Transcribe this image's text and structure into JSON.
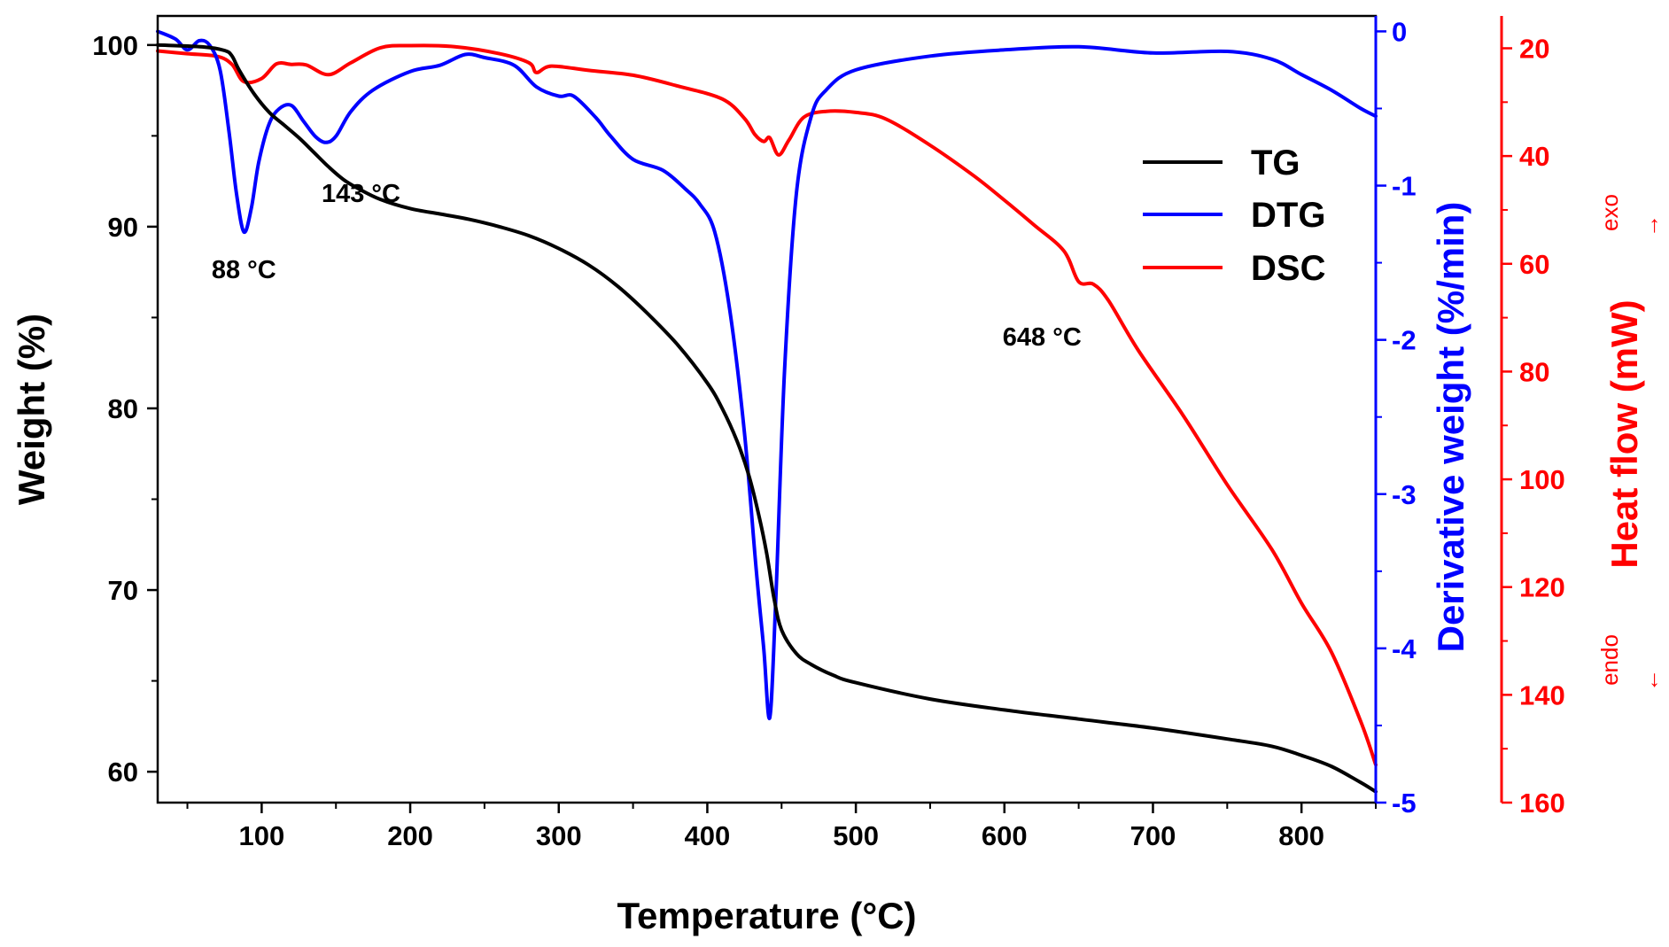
{
  "chart_data": {
    "type": "line",
    "xlabel": "Temperature (°C)",
    "x_ticks": [
      "100",
      "200",
      "300",
      "400",
      "500",
      "600",
      "700",
      "800"
    ],
    "xlim": [
      30,
      850
    ],
    "axes": {
      "left": {
        "label": "Weight (%)",
        "color": "#000000",
        "lim": [
          58.3,
          101.6
        ],
        "ticks": [
          "60",
          "70",
          "80",
          "90",
          "100"
        ]
      },
      "right1": {
        "label": "Derivative weight (%/min)",
        "color": "#0000ff",
        "lim": [
          -5,
          0.1
        ],
        "ticks": [
          "0",
          "-1",
          "-2",
          "-3",
          "-4",
          "-5"
        ]
      },
      "right2": {
        "label": "Heat flow (mW)",
        "color": "#ff0000",
        "lim": [
          160,
          14
        ],
        "ticks": [
          "20",
          "40",
          "60",
          "80",
          "100",
          "120",
          "140",
          "160"
        ],
        "exo_label": "exo",
        "endo_label": "endo",
        "up_arrow": "→",
        "down_arrow": "←"
      }
    },
    "legend_position": "top-right",
    "series": [
      {
        "name": "TG",
        "axis": "left",
        "color": "#000000",
        "points": [
          [
            30,
            100
          ],
          [
            60,
            99.9
          ],
          [
            75,
            99.7
          ],
          [
            80,
            99.4
          ],
          [
            85,
            98.6
          ],
          [
            95,
            97.3
          ],
          [
            105,
            96.3
          ],
          [
            115,
            95.6
          ],
          [
            125,
            94.9
          ],
          [
            135,
            94.1
          ],
          [
            145,
            93.3
          ],
          [
            155,
            92.6
          ],
          [
            165,
            92.1
          ],
          [
            180,
            91.5
          ],
          [
            200,
            91.0
          ],
          [
            220,
            90.7
          ],
          [
            240,
            90.4
          ],
          [
            260,
            90.0
          ],
          [
            280,
            89.5
          ],
          [
            300,
            88.8
          ],
          [
            320,
            87.9
          ],
          [
            340,
            86.7
          ],
          [
            360,
            85.2
          ],
          [
            380,
            83.5
          ],
          [
            400,
            81.4
          ],
          [
            410,
            80.0
          ],
          [
            420,
            78.2
          ],
          [
            428,
            76.3
          ],
          [
            435,
            74.0
          ],
          [
            440,
            72.0
          ],
          [
            445,
            69.5
          ],
          [
            450,
            67.8
          ],
          [
            460,
            66.5
          ],
          [
            470,
            65.9
          ],
          [
            485,
            65.3
          ],
          [
            500,
            64.9
          ],
          [
            550,
            64.0
          ],
          [
            600,
            63.4
          ],
          [
            650,
            62.9
          ],
          [
            700,
            62.4
          ],
          [
            750,
            61.8
          ],
          [
            780,
            61.4
          ],
          [
            800,
            60.9
          ],
          [
            820,
            60.3
          ],
          [
            840,
            59.4
          ],
          [
            850,
            58.9
          ]
        ]
      },
      {
        "name": "DTG",
        "axis": "right1",
        "color": "#0000ff",
        "points": [
          [
            30,
            0.0
          ],
          [
            42,
            -0.05
          ],
          [
            50,
            -0.12
          ],
          [
            58,
            -0.06
          ],
          [
            65,
            -0.09
          ],
          [
            72,
            -0.25
          ],
          [
            78,
            -0.65
          ],
          [
            83,
            -1.05
          ],
          [
            88,
            -1.3
          ],
          [
            93,
            -1.15
          ],
          [
            98,
            -0.85
          ],
          [
            105,
            -0.6
          ],
          [
            112,
            -0.5
          ],
          [
            120,
            -0.48
          ],
          [
            128,
            -0.58
          ],
          [
            136,
            -0.68
          ],
          [
            143,
            -0.72
          ],
          [
            150,
            -0.68
          ],
          [
            160,
            -0.52
          ],
          [
            175,
            -0.38
          ],
          [
            200,
            -0.26
          ],
          [
            220,
            -0.22
          ],
          [
            237,
            -0.15
          ],
          [
            250,
            -0.17
          ],
          [
            270,
            -0.22
          ],
          [
            285,
            -0.36
          ],
          [
            300,
            -0.42
          ],
          [
            310,
            -0.42
          ],
          [
            325,
            -0.56
          ],
          [
            335,
            -0.68
          ],
          [
            350,
            -0.83
          ],
          [
            370,
            -0.9
          ],
          [
            385,
            -1.02
          ],
          [
            395,
            -1.12
          ],
          [
            405,
            -1.3
          ],
          [
            415,
            -1.8
          ],
          [
            425,
            -2.6
          ],
          [
            433,
            -3.5
          ],
          [
            438,
            -4.0
          ],
          [
            442,
            -4.45
          ],
          [
            446,
            -3.7
          ],
          [
            452,
            -2.2
          ],
          [
            460,
            -1.05
          ],
          [
            470,
            -0.55
          ],
          [
            480,
            -0.38
          ],
          [
            500,
            -0.25
          ],
          [
            550,
            -0.16
          ],
          [
            600,
            -0.12
          ],
          [
            650,
            -0.1
          ],
          [
            700,
            -0.14
          ],
          [
            750,
            -0.13
          ],
          [
            780,
            -0.18
          ],
          [
            800,
            -0.28
          ],
          [
            820,
            -0.38
          ],
          [
            840,
            -0.5
          ],
          [
            850,
            -0.55
          ]
        ]
      },
      {
        "name": "DSC",
        "axis": "right2",
        "color": "#ff0000",
        "points": [
          [
            30,
            20.5
          ],
          [
            50,
            21.0
          ],
          [
            70,
            21.5
          ],
          [
            80,
            23.0
          ],
          [
            88,
            26.2
          ],
          [
            100,
            25.6
          ],
          [
            110,
            22.9
          ],
          [
            120,
            23.0
          ],
          [
            130,
            23.1
          ],
          [
            145,
            24.9
          ],
          [
            160,
            22.7
          ],
          [
            180,
            19.9
          ],
          [
            200,
            19.5
          ],
          [
            230,
            19.7
          ],
          [
            260,
            21.0
          ],
          [
            280,
            22.7
          ],
          [
            285,
            24.5
          ],
          [
            295,
            23.3
          ],
          [
            320,
            24.1
          ],
          [
            350,
            25.0
          ],
          [
            380,
            27.0
          ],
          [
            410,
            29.4
          ],
          [
            425,
            33.0
          ],
          [
            432,
            36.0
          ],
          [
            438,
            37.3
          ],
          [
            442,
            36.6
          ],
          [
            448,
            39.8
          ],
          [
            455,
            37.0
          ],
          [
            465,
            32.8
          ],
          [
            480,
            31.7
          ],
          [
            500,
            31.9
          ],
          [
            520,
            33.1
          ],
          [
            550,
            38.0
          ],
          [
            580,
            43.8
          ],
          [
            600,
            48.2
          ],
          [
            620,
            52.8
          ],
          [
            640,
            57.6
          ],
          [
            650,
            63.3
          ],
          [
            660,
            63.8
          ],
          [
            670,
            66.8
          ],
          [
            690,
            76.0
          ],
          [
            720,
            88.0
          ],
          [
            750,
            101.0
          ],
          [
            780,
            113.0
          ],
          [
            800,
            123.0
          ],
          [
            820,
            132.0
          ],
          [
            840,
            145.0
          ],
          [
            850,
            153.0
          ]
        ]
      }
    ],
    "annotations": [
      {
        "text": "88 °C",
        "x": 88,
        "y": -1.3,
        "axis": "right1",
        "anchor": "below"
      },
      {
        "text": "143 °C",
        "x": 143,
        "y": -0.72,
        "axis": "right1",
        "anchor": "below"
      },
      {
        "text": "648 °C",
        "x": 648,
        "y": 63.3,
        "axis": "right2",
        "anchor": "below-left"
      }
    ]
  }
}
